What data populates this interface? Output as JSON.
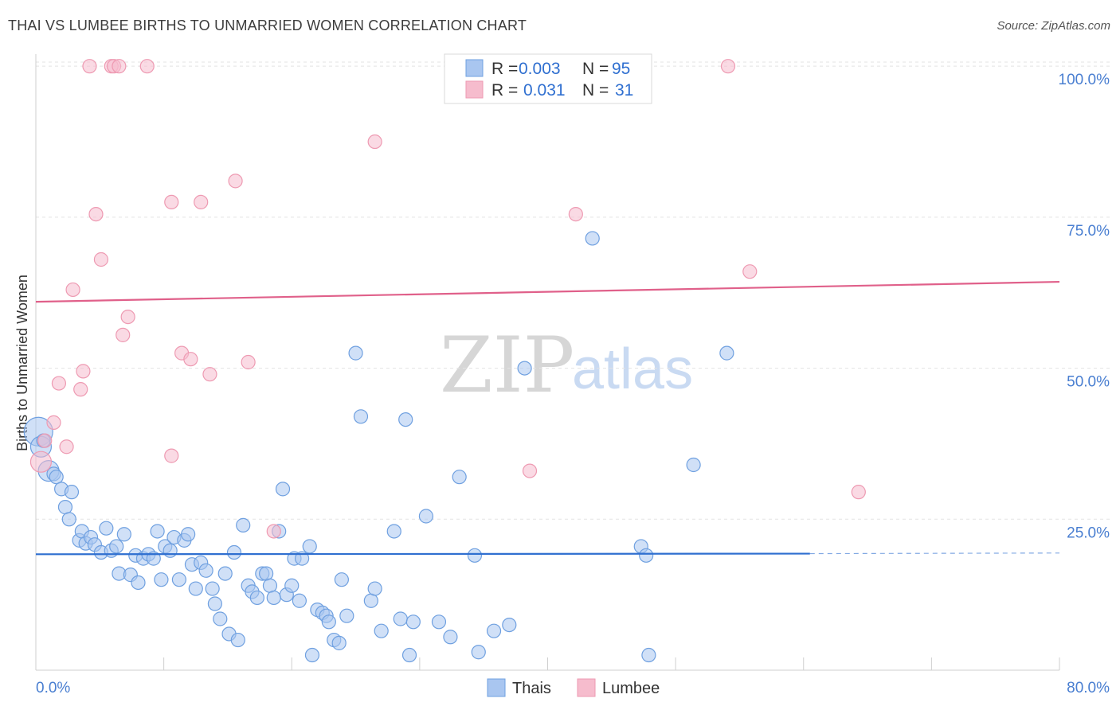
{
  "header": {
    "title": "THAI VS LUMBEE BIRTHS TO UNMARRIED WOMEN CORRELATION CHART",
    "source": "Source: ZipAtlas.com"
  },
  "watermark": {
    "zip": "ZIP",
    "atlas": "atlas"
  },
  "legend": {
    "rows": [
      {
        "r_label": "R =",
        "r_value": "0.003",
        "n_label": "N =",
        "n_value": "95",
        "color": "#a9c6f0"
      },
      {
        "r_label": "R =",
        "r_value": "0.031",
        "n_label": "N =",
        "n_value": "31",
        "color": "#f6bccd"
      }
    ]
  },
  "bottom_legend": [
    {
      "label": "Thais",
      "color": "#a9c6f0"
    },
    {
      "label": "Lumbee",
      "color": "#f6bccd"
    }
  ],
  "chart_data": {
    "type": "scatter",
    "title": "THAI VS LUMBEE BIRTHS TO UNMARRIED WOMEN CORRELATION CHART",
    "xlabel": "",
    "ylabel": "Births to Unmarried Women",
    "xlim": [
      0,
      80
    ],
    "ylim": [
      0,
      102
    ],
    "x_tick_labels": [
      "0.0%",
      "80.0%"
    ],
    "y_ticks": [
      25,
      50,
      75,
      100
    ],
    "y_tick_labels": [
      "25.0%",
      "50.0%",
      "75.0%",
      "100.0%"
    ],
    "grid": true,
    "series": [
      {
        "name": "Thais",
        "color": "#6fa0e0",
        "fill": "#a9c6f0",
        "trend": {
          "x": [
            0,
            60.5
          ],
          "y": [
            19.2,
            19.3
          ],
          "dashed_to": 80,
          "color": "#2f6fd0"
        },
        "points": [
          {
            "x": 0.2,
            "y": 39.5,
            "s": 3
          },
          {
            "x": 0.4,
            "y": 37.0,
            "s": 2
          },
          {
            "x": 0.6,
            "y": 38.0,
            "s": 1
          },
          {
            "x": 1.0,
            "y": 33.0,
            "s": 2
          },
          {
            "x": 1.4,
            "y": 32.5,
            "s": 1
          },
          {
            "x": 1.6,
            "y": 32.0,
            "s": 1
          },
          {
            "x": 2.0,
            "y": 30.0,
            "s": 1
          },
          {
            "x": 2.3,
            "y": 27.0,
            "s": 1
          },
          {
            "x": 2.8,
            "y": 29.5,
            "s": 1
          },
          {
            "x": 2.6,
            "y": 25.0,
            "s": 1
          },
          {
            "x": 3.4,
            "y": 21.5,
            "s": 1
          },
          {
            "x": 3.6,
            "y": 23.0,
            "s": 1
          },
          {
            "x": 3.9,
            "y": 21.0,
            "s": 1
          },
          {
            "x": 4.3,
            "y": 22.0,
            "s": 1
          },
          {
            "x": 4.6,
            "y": 20.8,
            "s": 1
          },
          {
            "x": 5.1,
            "y": 19.5,
            "s": 1
          },
          {
            "x": 5.5,
            "y": 23.5,
            "s": 1
          },
          {
            "x": 5.9,
            "y": 19.8,
            "s": 1
          },
          {
            "x": 6.3,
            "y": 20.5,
            "s": 1
          },
          {
            "x": 6.5,
            "y": 16.0,
            "s": 1
          },
          {
            "x": 6.9,
            "y": 22.5,
            "s": 1
          },
          {
            "x": 7.4,
            "y": 15.8,
            "s": 1
          },
          {
            "x": 7.8,
            "y": 19.0,
            "s": 1
          },
          {
            "x": 8.0,
            "y": 14.5,
            "s": 1
          },
          {
            "x": 8.4,
            "y": 18.5,
            "s": 1
          },
          {
            "x": 8.8,
            "y": 19.2,
            "s": 1
          },
          {
            "x": 9.2,
            "y": 18.5,
            "s": 1
          },
          {
            "x": 9.5,
            "y": 23.0,
            "s": 1
          },
          {
            "x": 9.8,
            "y": 15.0,
            "s": 1
          },
          {
            "x": 10.1,
            "y": 20.5,
            "s": 1
          },
          {
            "x": 10.5,
            "y": 19.8,
            "s": 1
          },
          {
            "x": 10.8,
            "y": 22.0,
            "s": 1
          },
          {
            "x": 11.2,
            "y": 15.0,
            "s": 1
          },
          {
            "x": 11.6,
            "y": 21.5,
            "s": 1
          },
          {
            "x": 11.9,
            "y": 22.5,
            "s": 1
          },
          {
            "x": 12.2,
            "y": 17.5,
            "s": 1
          },
          {
            "x": 12.5,
            "y": 13.5,
            "s": 1
          },
          {
            "x": 12.9,
            "y": 17.8,
            "s": 1
          },
          {
            "x": 13.3,
            "y": 16.5,
            "s": 1
          },
          {
            "x": 13.8,
            "y": 13.5,
            "s": 1
          },
          {
            "x": 14.0,
            "y": 11.0,
            "s": 1
          },
          {
            "x": 14.4,
            "y": 8.5,
            "s": 1
          },
          {
            "x": 14.8,
            "y": 16.0,
            "s": 1
          },
          {
            "x": 15.1,
            "y": 6.0,
            "s": 1
          },
          {
            "x": 15.5,
            "y": 19.5,
            "s": 1
          },
          {
            "x": 15.8,
            "y": 5.0,
            "s": 1
          },
          {
            "x": 16.2,
            "y": 24.0,
            "s": 1
          },
          {
            "x": 16.6,
            "y": 14.0,
            "s": 1
          },
          {
            "x": 16.9,
            "y": 13.0,
            "s": 1
          },
          {
            "x": 17.3,
            "y": 12.0,
            "s": 1
          },
          {
            "x": 17.7,
            "y": 16.0,
            "s": 1
          },
          {
            "x": 18.0,
            "y": 16.0,
            "s": 1
          },
          {
            "x": 18.3,
            "y": 14.0,
            "s": 1
          },
          {
            "x": 18.6,
            "y": 12.0,
            "s": 1
          },
          {
            "x": 19.0,
            "y": 23.0,
            "s": 1
          },
          {
            "x": 19.3,
            "y": 30.0,
            "s": 1
          },
          {
            "x": 19.6,
            "y": 12.5,
            "s": 1
          },
          {
            "x": 20.0,
            "y": 14.0,
            "s": 1
          },
          {
            "x": 20.2,
            "y": 18.5,
            "s": 1
          },
          {
            "x": 20.6,
            "y": 11.5,
            "s": 1
          },
          {
            "x": 20.8,
            "y": 18.5,
            "s": 1
          },
          {
            "x": 21.4,
            "y": 20.5,
            "s": 1
          },
          {
            "x": 21.6,
            "y": 2.5,
            "s": 1
          },
          {
            "x": 22.0,
            "y": 10.0,
            "s": 1
          },
          {
            "x": 22.4,
            "y": 9.5,
            "s": 1
          },
          {
            "x": 22.7,
            "y": 9.0,
            "s": 1
          },
          {
            "x": 22.9,
            "y": 8.0,
            "s": 1
          },
          {
            "x": 23.3,
            "y": 5.0,
            "s": 1
          },
          {
            "x": 23.7,
            "y": 4.5,
            "s": 1
          },
          {
            "x": 23.9,
            "y": 15.0,
            "s": 1
          },
          {
            "x": 24.3,
            "y": 9.0,
            "s": 1
          },
          {
            "x": 25.0,
            "y": 52.5,
            "s": 1
          },
          {
            "x": 25.4,
            "y": 42.0,
            "s": 1
          },
          {
            "x": 26.2,
            "y": 11.5,
            "s": 1
          },
          {
            "x": 26.5,
            "y": 13.5,
            "s": 1
          },
          {
            "x": 27.0,
            "y": 6.5,
            "s": 1
          },
          {
            "x": 28.0,
            "y": 23.0,
            "s": 1
          },
          {
            "x": 28.5,
            "y": 8.5,
            "s": 1
          },
          {
            "x": 28.9,
            "y": 41.5,
            "s": 1
          },
          {
            "x": 29.2,
            "y": 2.5,
            "s": 1
          },
          {
            "x": 29.5,
            "y": 8.0,
            "s": 1
          },
          {
            "x": 30.5,
            "y": 25.5,
            "s": 1
          },
          {
            "x": 31.5,
            "y": 8.0,
            "s": 1
          },
          {
            "x": 32.4,
            "y": 5.5,
            "s": 1
          },
          {
            "x": 33.1,
            "y": 32.0,
            "s": 1
          },
          {
            "x": 34.3,
            "y": 19.0,
            "s": 1
          },
          {
            "x": 34.6,
            "y": 3.0,
            "s": 1
          },
          {
            "x": 35.8,
            "y": 6.5,
            "s": 1
          },
          {
            "x": 37.0,
            "y": 7.5,
            "s": 1
          },
          {
            "x": 38.2,
            "y": 50.0,
            "s": 1
          },
          {
            "x": 43.5,
            "y": 71.5,
            "s": 1
          },
          {
            "x": 47.3,
            "y": 20.5,
            "s": 1
          },
          {
            "x": 47.7,
            "y": 19.0,
            "s": 1
          },
          {
            "x": 47.9,
            "y": 2.5,
            "s": 1
          },
          {
            "x": 51.4,
            "y": 34.0,
            "s": 1
          },
          {
            "x": 54.0,
            "y": 52.5,
            "s": 1
          }
        ]
      },
      {
        "name": "Lumbee",
        "color": "#ee9ab2",
        "fill": "#f6bccd",
        "trend": {
          "x": [
            0,
            80
          ],
          "y": [
            61.0,
            64.3
          ],
          "color": "#e0608a"
        },
        "points": [
          {
            "x": 0.4,
            "y": 34.5,
            "s": 2
          },
          {
            "x": 0.7,
            "y": 38.0,
            "s": 1
          },
          {
            "x": 1.4,
            "y": 41.0,
            "s": 1
          },
          {
            "x": 1.8,
            "y": 47.5,
            "s": 1
          },
          {
            "x": 2.4,
            "y": 37.0,
            "s": 1
          },
          {
            "x": 2.9,
            "y": 63.0,
            "s": 1
          },
          {
            "x": 3.5,
            "y": 46.5,
            "s": 1
          },
          {
            "x": 3.7,
            "y": 49.5,
            "s": 1
          },
          {
            "x": 4.2,
            "y": 100.0,
            "s": 1
          },
          {
            "x": 4.7,
            "y": 75.5,
            "s": 1
          },
          {
            "x": 5.1,
            "y": 68.0,
            "s": 1
          },
          {
            "x": 5.9,
            "y": 100.0,
            "s": 1
          },
          {
            "x": 6.1,
            "y": 100.0,
            "s": 1
          },
          {
            "x": 6.5,
            "y": 100.0,
            "s": 1
          },
          {
            "x": 6.8,
            "y": 55.5,
            "s": 1
          },
          {
            "x": 7.2,
            "y": 58.5,
            "s": 1
          },
          {
            "x": 8.7,
            "y": 100.0,
            "s": 1
          },
          {
            "x": 10.6,
            "y": 77.5,
            "s": 1
          },
          {
            "x": 10.6,
            "y": 35.5,
            "s": 1
          },
          {
            "x": 11.4,
            "y": 52.5,
            "s": 1
          },
          {
            "x": 12.1,
            "y": 51.5,
            "s": 1
          },
          {
            "x": 12.9,
            "y": 77.5,
            "s": 1
          },
          {
            "x": 13.6,
            "y": 49.0,
            "s": 1
          },
          {
            "x": 15.6,
            "y": 81.0,
            "s": 1
          },
          {
            "x": 16.6,
            "y": 51.0,
            "s": 1
          },
          {
            "x": 18.6,
            "y": 23.0,
            "s": 1
          },
          {
            "x": 26.5,
            "y": 87.5,
            "s": 1
          },
          {
            "x": 38.6,
            "y": 33.0,
            "s": 1
          },
          {
            "x": 42.2,
            "y": 75.5,
            "s": 1
          },
          {
            "x": 54.1,
            "y": 100.0,
            "s": 1
          },
          {
            "x": 55.8,
            "y": 66.0,
            "s": 1
          },
          {
            "x": 64.3,
            "y": 29.5,
            "s": 1
          }
        ]
      }
    ]
  }
}
